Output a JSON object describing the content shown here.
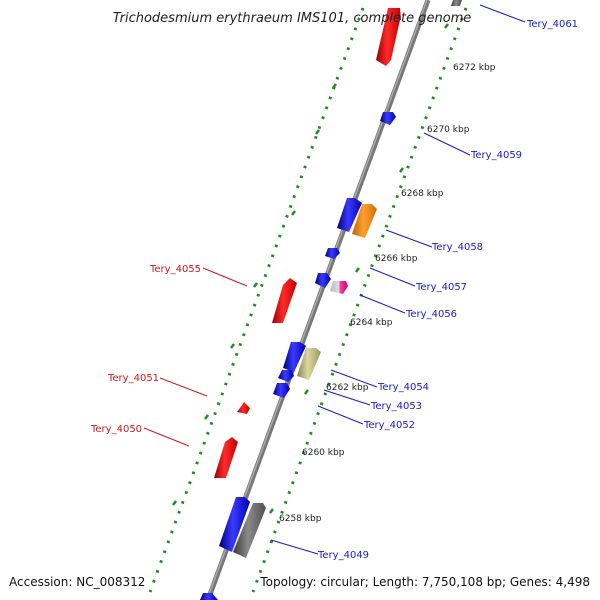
{
  "title": "Trichodesmium erythraeum IMS101, complete genome",
  "accession": "Accession: NC_008312",
  "summary": "Topology: circular; Length: 7,750,108 bp; Genes: 4,498",
  "colors": {
    "forward_label": "#1a1acc",
    "reverse_label": "#cc1a1a",
    "tick": "#1e8c1e",
    "backbone": "#888888"
  },
  "kbp_ticks": [
    "6272 kbp",
    "6270 kbp",
    "6268 kbp",
    "6266 kbp",
    "6264 kbp",
    "6262 kbp",
    "6260 kbp",
    "6258 kbp"
  ],
  "gene_labels": [
    {
      "text": "Tery_4061",
      "strand": "forward"
    },
    {
      "text": "Tery_4059",
      "strand": "forward"
    },
    {
      "text": "Tery_4058",
      "strand": "forward"
    },
    {
      "text": "Tery_4057",
      "strand": "forward"
    },
    {
      "text": "Tery_4056",
      "strand": "forward"
    },
    {
      "text": "Tery_4054",
      "strand": "forward"
    },
    {
      "text": "Tery_4053",
      "strand": "forward"
    },
    {
      "text": "Tery_4052",
      "strand": "forward"
    },
    {
      "text": "Tery_4049",
      "strand": "forward"
    },
    {
      "text": "Tery_4055",
      "strand": "reverse"
    },
    {
      "text": "Tery_4051",
      "strand": "reverse"
    },
    {
      "text": "Tery_4050",
      "strand": "reverse"
    }
  ]
}
